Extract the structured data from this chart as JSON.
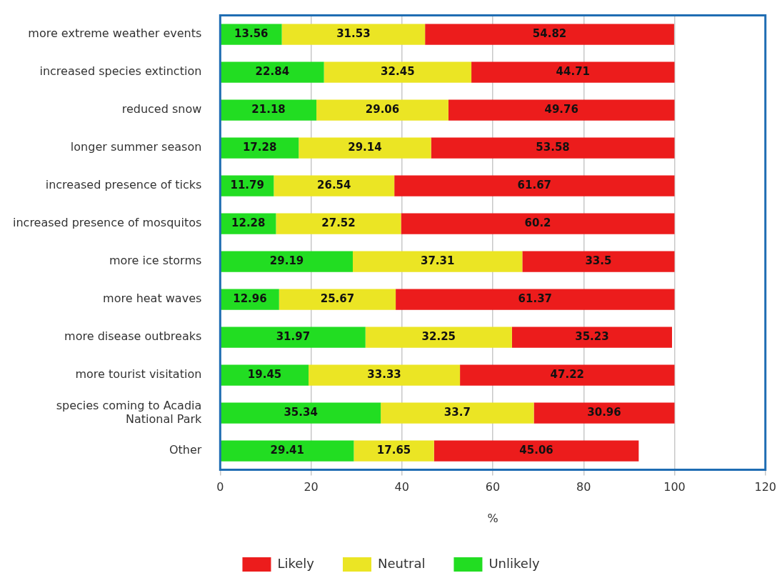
{
  "chart_data": {
    "type": "bar",
    "orientation": "horizontal",
    "stacked": true,
    "xlabel": "%",
    "categories": [
      "more extreme weather events",
      "increased species extinction",
      "reduced snow",
      "longer summer season",
      "increased presence of ticks",
      "increased presence of mosquitos",
      "more ice storms",
      "more heat waves",
      "more disease outbreaks",
      "more tourist visitation",
      "species coming to Acadia National Park",
      "Other"
    ],
    "series": [
      {
        "name": "Unlikely",
        "color": "#22dd22",
        "values": [
          13.56,
          22.84,
          21.18,
          17.28,
          11.79,
          12.28,
          29.19,
          12.96,
          31.97,
          19.45,
          35.34,
          29.41
        ]
      },
      {
        "name": "Neutral",
        "color": "#ebe524",
        "values": [
          31.53,
          32.45,
          29.06,
          29.14,
          26.54,
          27.52,
          37.31,
          25.67,
          32.25,
          33.33,
          33.7,
          17.65
        ]
      },
      {
        "name": "Likely",
        "color": "#ec1c1c",
        "values": [
          54.82,
          44.71,
          49.76,
          53.58,
          61.67,
          60.2,
          33.5,
          61.37,
          35.23,
          47.22,
          30.96,
          45.06
        ]
      }
    ],
    "xlim": [
      0,
      120
    ],
    "xticks": [
      0,
      20,
      40,
      60,
      80,
      100,
      120
    ],
    "grid": "x",
    "legend": "bottom",
    "data_labels": true
  }
}
